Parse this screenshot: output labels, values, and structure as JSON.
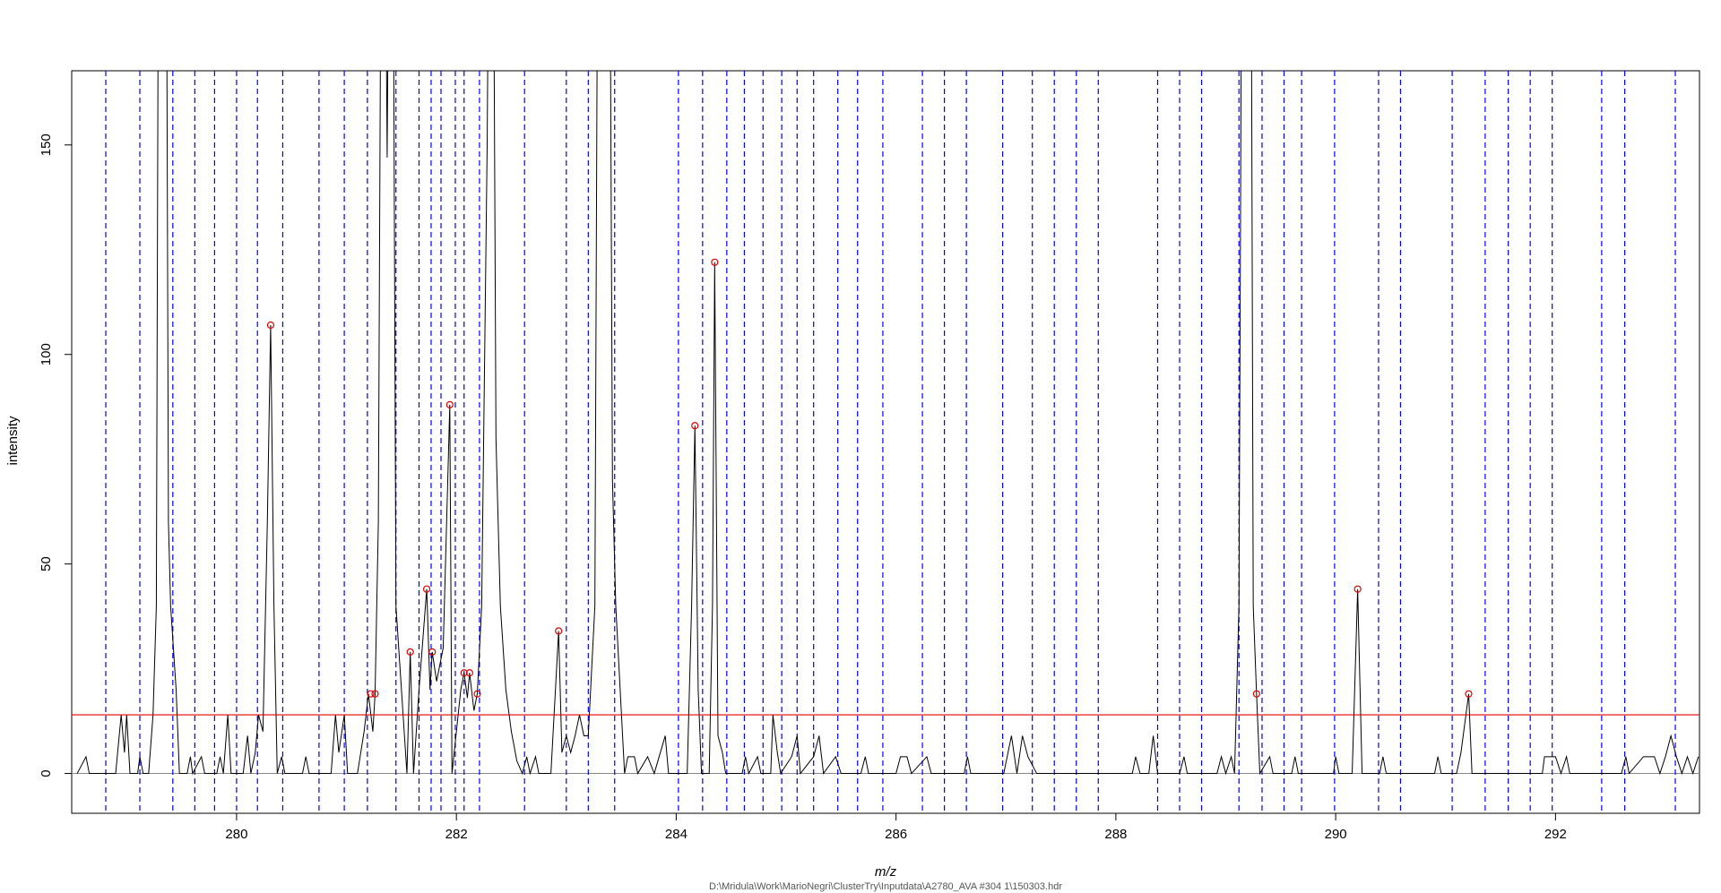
{
  "chart_data": {
    "type": "line",
    "ylabel": "intensity",
    "xlabel": "m/z",
    "caption": "D:\\Mridula\\Work\\MarioNegri\\ClusterTry\\Inputdata\\A2780_AVA #304 1\\150303.hdr",
    "xlim": [
      278.5,
      293.31
    ],
    "ylim": [
      -9.5,
      167.7
    ],
    "xticks": [
      280,
      282,
      284,
      286,
      288,
      290,
      292
    ],
    "yticks": [
      0,
      50,
      100,
      150
    ],
    "color": "#000000",
    "x": [
      278.55,
      278.63,
      278.66,
      278.9,
      278.95,
      278.98,
      279.0,
      279.03,
      279.1,
      279.12,
      279.15,
      279.2,
      279.24,
      279.27,
      279.3,
      279.35,
      279.38,
      279.4,
      279.45,
      279.48,
      279.55,
      279.58,
      279.6,
      279.68,
      279.71,
      279.82,
      279.85,
      279.88,
      279.92,
      279.95,
      280.06,
      280.1,
      280.13,
      280.17,
      280.2,
      280.24,
      280.28,
      280.31,
      280.34,
      280.37,
      280.41,
      280.44,
      280.6,
      280.63,
      280.66,
      280.86,
      280.9,
      280.93,
      280.98,
      281.01,
      281.1,
      281.16,
      281.2,
      281.24,
      281.26,
      281.29,
      281.33,
      281.37,
      281.41,
      281.45,
      281.5,
      281.55,
      281.58,
      281.61,
      281.66,
      281.73,
      281.76,
      281.78,
      281.82,
      281.88,
      281.94,
      281.96,
      282.0,
      282.04,
      282.07,
      282.1,
      282.12,
      282.16,
      282.19,
      282.23,
      282.28,
      282.32,
      282.36,
      282.4,
      282.45,
      282.5,
      282.55,
      282.6,
      282.64,
      282.67,
      282.72,
      282.75,
      282.86,
      282.93,
      282.96,
      283.0,
      283.04,
      283.08,
      283.12,
      283.16,
      283.2,
      283.26,
      283.3,
      283.38,
      283.42,
      283.45,
      283.5,
      283.53,
      283.56,
      283.62,
      283.65,
      283.74,
      283.8,
      283.9,
      283.93,
      284.1,
      284.14,
      284.17,
      284.2,
      284.23,
      284.3,
      284.33,
      284.35,
      284.38,
      284.42,
      284.45,
      284.6,
      284.63,
      284.66,
      284.74,
      284.77,
      284.86,
      284.88,
      284.92,
      284.95,
      285.05,
      285.1,
      285.13,
      285.25,
      285.3,
      285.34,
      285.45,
      285.5,
      285.68,
      285.72,
      285.75,
      286.0,
      286.04,
      286.1,
      286.14,
      286.28,
      286.32,
      286.62,
      286.65,
      286.68,
      286.98,
      287.05,
      287.1,
      287.15,
      287.2,
      287.28,
      288.15,
      288.18,
      288.22,
      288.3,
      288.34,
      288.38,
      288.58,
      288.62,
      288.65,
      288.92,
      288.96,
      289.0,
      289.05,
      289.08,
      289.12,
      289.16,
      289.22,
      289.25,
      289.28,
      289.31,
      289.4,
      289.43,
      289.6,
      289.63,
      289.66,
      289.98,
      290.0,
      290.03,
      290.15,
      290.2,
      290.24,
      290.4,
      290.43,
      290.46,
      290.9,
      290.93,
      290.96,
      291.1,
      291.14,
      291.21,
      291.24,
      291.88,
      291.9,
      292.0,
      292.05,
      292.1,
      292.13,
      292.6,
      292.64,
      292.67,
      292.8,
      292.9,
      292.95,
      293.0,
      293.05,
      293.1,
      293.15,
      293.2,
      293.25,
      293.3
    ],
    "values": [
      0,
      4,
      0,
      0,
      14,
      5,
      14,
      0,
      0,
      4,
      0,
      0,
      14,
      40,
      300,
      300,
      60,
      40,
      20,
      0,
      0,
      4,
      0,
      4,
      0,
      0,
      4,
      0,
      14,
      0,
      0,
      9,
      0,
      5,
      14,
      10,
      60,
      107,
      40,
      0,
      4,
      0,
      0,
      4,
      0,
      0,
      14,
      5,
      14,
      0,
      0,
      10,
      19,
      10,
      19,
      60,
      300,
      147,
      300,
      40,
      20,
      0,
      29,
      0,
      20,
      44,
      20,
      29,
      22,
      30,
      88,
      0,
      10,
      20,
      24,
      18,
      24,
      15,
      19,
      40,
      150,
      300,
      80,
      40,
      20,
      10,
      3,
      0,
      4,
      0,
      4,
      0,
      0,
      34,
      5,
      9,
      5,
      9,
      14,
      9,
      9,
      40,
      300,
      300,
      70,
      40,
      15,
      0,
      4,
      4,
      0,
      4,
      0,
      9,
      0,
      0,
      40,
      83,
      20,
      0,
      0,
      40,
      122,
      9,
      5,
      0,
      0,
      4,
      0,
      4,
      0,
      0,
      14,
      5,
      0,
      4,
      9,
      0,
      4,
      9,
      0,
      4,
      0,
      0,
      4,
      0,
      0,
      4,
      4,
      0,
      4,
      0,
      0,
      4,
      0,
      0,
      9,
      0,
      9,
      4,
      0,
      0,
      4,
      0,
      0,
      9,
      0,
      0,
      4,
      0,
      0,
      4,
      0,
      4,
      0,
      40,
      300,
      300,
      40,
      19,
      0,
      4,
      0,
      0,
      4,
      0,
      0,
      4,
      0,
      0,
      44,
      0,
      0,
      4,
      0,
      0,
      4,
      0,
      0,
      5,
      19,
      0,
      0,
      4,
      4,
      0,
      4,
      0,
      0,
      4,
      0,
      4,
      4,
      0,
      4,
      9,
      4,
      0,
      4,
      0,
      4
    ],
    "peaks": {
      "color": "#e00000",
      "x": [
        280.31,
        281.22,
        281.26,
        281.58,
        281.73,
        281.78,
        281.94,
        282.07,
        282.12,
        282.19,
        282.93,
        284.17,
        284.35,
        289.28,
        290.2,
        291.21
      ],
      "values": [
        107,
        19,
        19,
        29,
        44,
        29,
        88,
        24,
        24,
        19,
        34,
        83,
        122,
        19,
        44,
        19
      ]
    },
    "vlines": {
      "color": "#0000ff",
      "x": [
        278.81,
        279.12,
        279.42,
        279.62,
        279.8,
        280.0,
        280.19,
        280.42,
        280.75,
        280.98,
        281.19,
        281.45,
        281.66,
        281.77,
        281.86,
        281.99,
        282.07,
        282.21,
        282.62,
        283.0,
        283.2,
        283.44,
        284.02,
        284.24,
        284.46,
        284.62,
        284.79,
        284.96,
        285.1,
        285.25,
        285.47,
        285.65,
        285.88,
        286.24,
        286.44,
        286.64,
        286.97,
        287.24,
        287.44,
        287.64,
        287.84,
        288.38,
        288.58,
        288.78,
        289.12,
        289.33,
        289.53,
        289.69,
        289.99,
        290.39,
        290.59,
        291.06,
        291.36,
        291.57,
        291.77,
        291.97,
        292.42,
        292.63,
        293.09
      ]
    },
    "hline": {
      "value": 14,
      "color": "#e00000"
    }
  }
}
